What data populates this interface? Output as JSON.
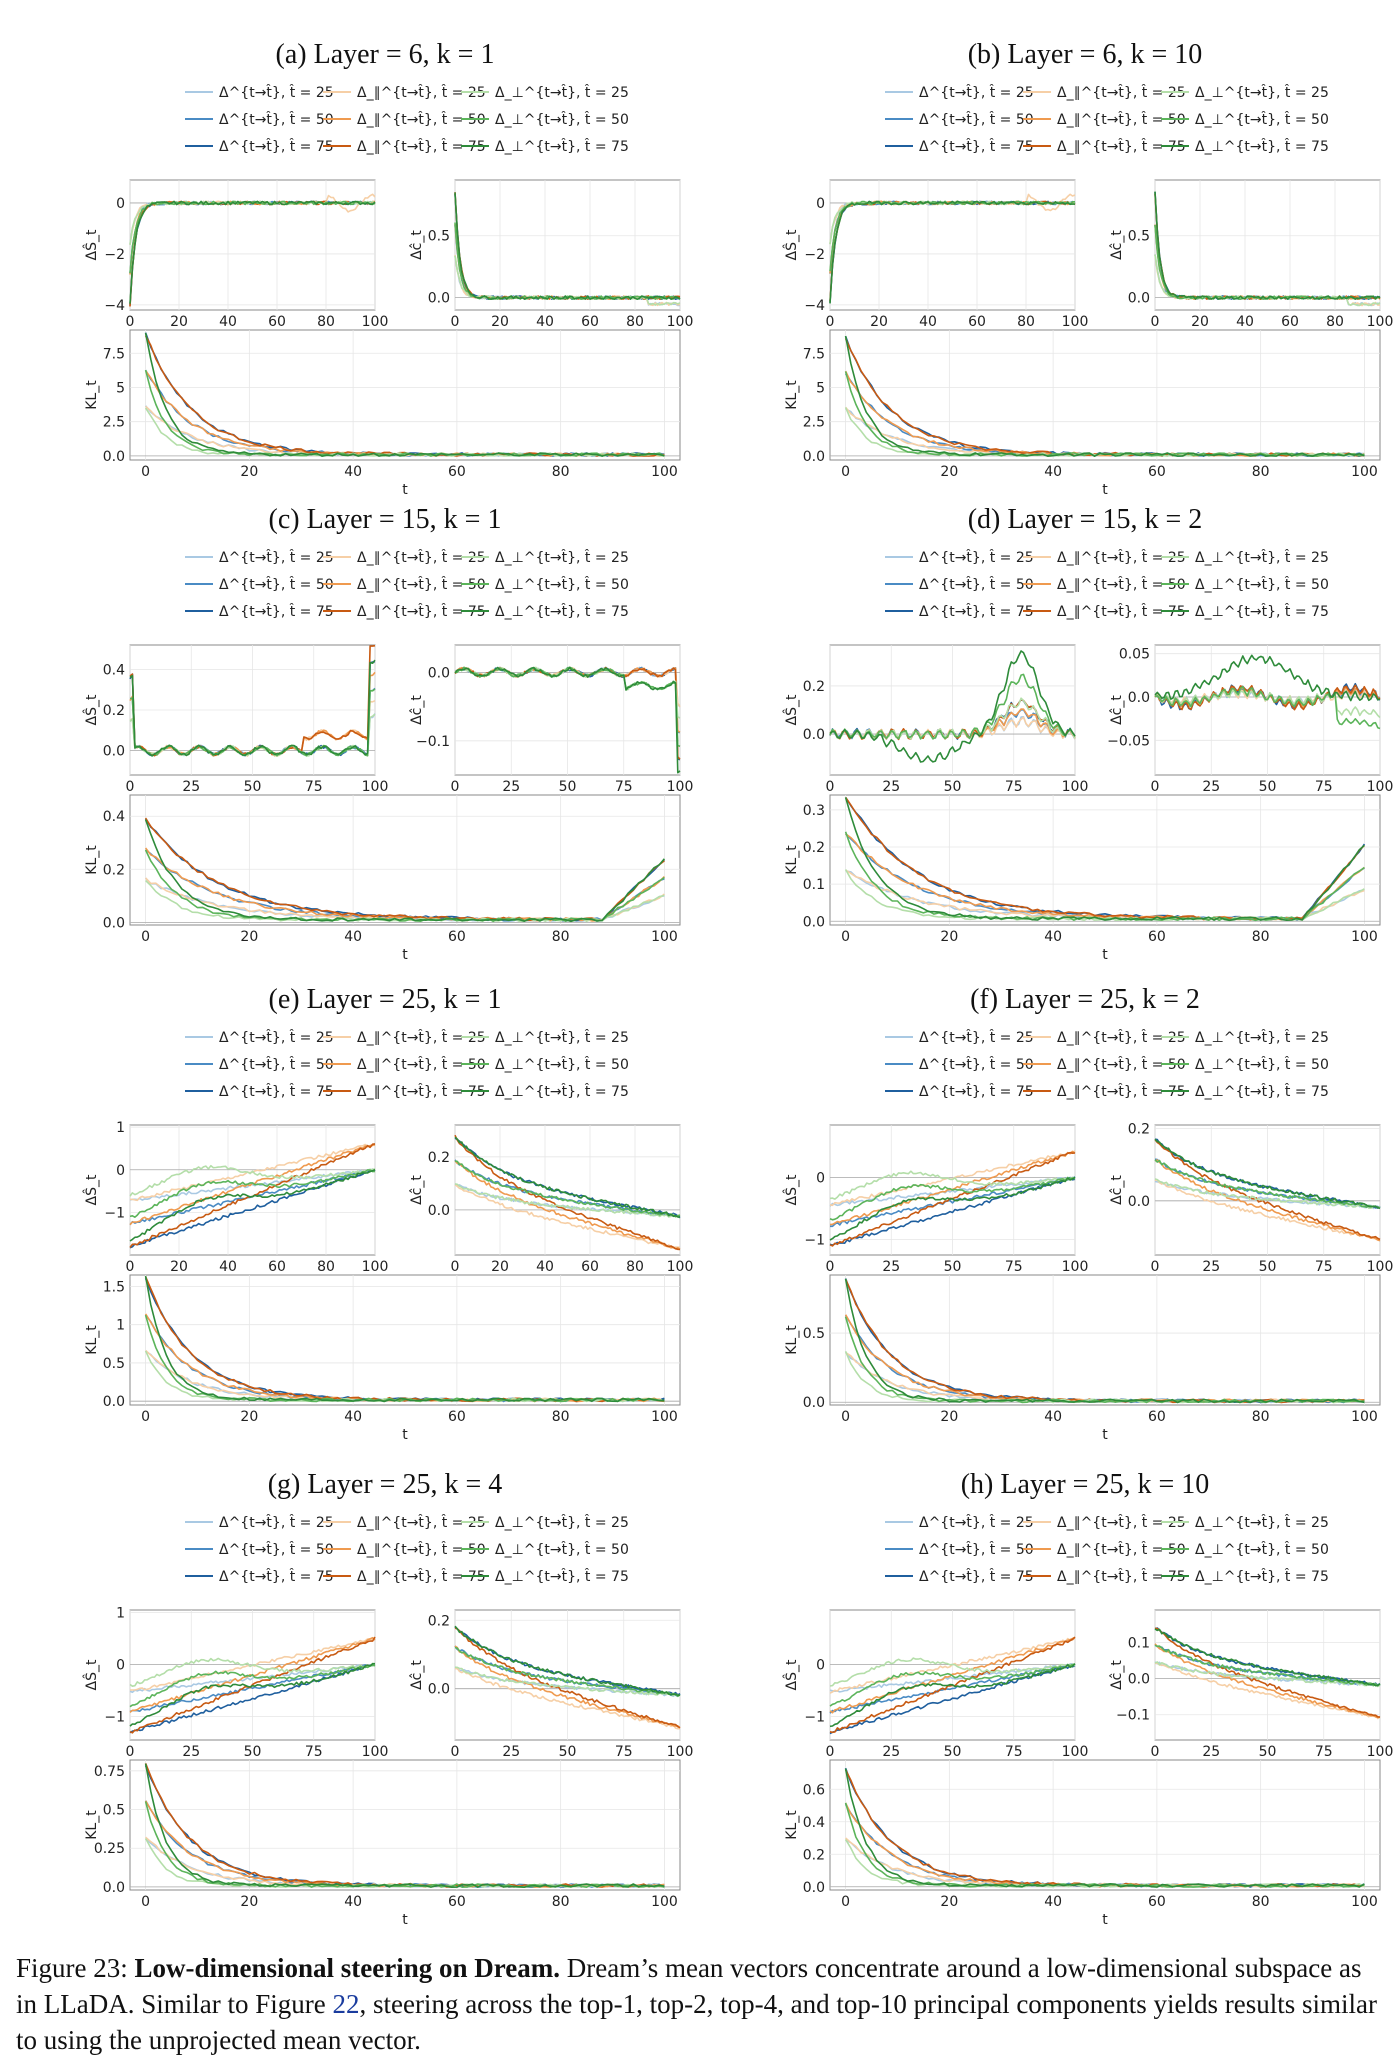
{
  "figure": {
    "panels": [
      {
        "id": "a",
        "title": "(a) Layer = 6, k = 1"
      },
      {
        "id": "b",
        "title": "(b) Layer = 6, k = 10"
      },
      {
        "id": "c",
        "title": "(c) Layer = 15, k = 1"
      },
      {
        "id": "d",
        "title": "(d) Layer = 15, k = 2"
      },
      {
        "id": "e",
        "title": "(e) Layer = 25, k = 1"
      },
      {
        "id": "f",
        "title": "(f) Layer = 25, k = 2"
      },
      {
        "id": "g",
        "title": "(g) Layer = 25, k = 4"
      },
      {
        "id": "h",
        "title": "(h) Layer = 25, k = 10"
      }
    ],
    "legend": [
      {
        "label": "Δ^{t→t̂}, t̂ = 25",
        "color": "#a9c9e3"
      },
      {
        "label": "Δ^{t→t̂}, t̂ = 50",
        "color": "#4a8bc4"
      },
      {
        "label": "Δ^{t→t̂}, t̂ = 75",
        "color": "#1f5f9e"
      },
      {
        "label": "Δ_∥^{t→t̂}, t̂ = 25",
        "color": "#f6cfa6"
      },
      {
        "label": "Δ_∥^{t→t̂}, t̂ = 50",
        "color": "#ef9a4f"
      },
      {
        "label": "Δ_∥^{t→t̂}, t̂ = 75",
        "color": "#c85a12"
      },
      {
        "label": "Δ_⊥^{t→t̂}, t̂ = 25",
        "color": "#b4dea9"
      },
      {
        "label": "Δ_⊥^{t→t̂}, t̂ = 50",
        "color": "#5bb45a"
      },
      {
        "label": "Δ_⊥^{t→t̂}, t̂ = 75",
        "color": "#2e8b3a"
      }
    ],
    "axes": {
      "delta_s_label": "ΔŜ_t",
      "delta_c_label": "Δĉ_t",
      "kl_label": "KL_t",
      "x_label": "t"
    }
  },
  "chart_data": [
    {
      "panel": "a",
      "type": "line",
      "title": "(a) Layer = 6, k = 1",
      "subplots": [
        {
          "name": "delta_s",
          "ylabel": "ΔŜ_t",
          "xlim": [
            0,
            100
          ],
          "ylim": [
            -4.2,
            0.9
          ],
          "xticks": [
            0,
            20,
            40,
            60,
            80,
            100
          ],
          "yticks": [
            -4,
            -2,
            0
          ],
          "shape": "neg-spike",
          "peak": -4.0
        },
        {
          "name": "delta_c",
          "ylabel": "Δĉ_t",
          "xlim": [
            0,
            100
          ],
          "ylim": [
            -0.1,
            0.95
          ],
          "xticks": [
            0,
            20,
            40,
            60,
            80,
            100
          ],
          "yticks": [
            0.0,
            0.5
          ],
          "shape": "pos-spike",
          "peak": 0.85
        },
        {
          "name": "kl",
          "ylabel": "KL_t",
          "xlabel": "t",
          "xlim": [
            -3,
            103
          ],
          "ylim": [
            -0.3,
            9.2
          ],
          "xticks": [
            0,
            20,
            40,
            60,
            80,
            100
          ],
          "yticks": [
            0.0,
            2.5,
            5.0,
            7.5
          ],
          "shape": "decay",
          "peak": 8.8
        }
      ]
    },
    {
      "panel": "b",
      "type": "line",
      "title": "(b) Layer = 6, k = 10",
      "subplots": [
        {
          "name": "delta_s",
          "ylabel": "ΔŜ_t",
          "xlim": [
            0,
            100
          ],
          "ylim": [
            -4.2,
            0.9
          ],
          "xticks": [
            0,
            20,
            40,
            60,
            80,
            100
          ],
          "yticks": [
            -4,
            -2,
            0
          ],
          "shape": "neg-spike",
          "peak": -3.9
        },
        {
          "name": "delta_c",
          "ylabel": "Δĉ_t",
          "xlim": [
            0,
            100
          ],
          "ylim": [
            -0.1,
            0.95
          ],
          "xticks": [
            0,
            20,
            40,
            60,
            80,
            100
          ],
          "yticks": [
            0.0,
            0.5
          ],
          "shape": "pos-spike",
          "peak": 0.85
        },
        {
          "name": "kl",
          "ylabel": "KL_t",
          "xlabel": "t",
          "xlim": [
            -3,
            103
          ],
          "ylim": [
            -0.3,
            9.2
          ],
          "xticks": [
            0,
            20,
            40,
            60,
            80,
            100
          ],
          "yticks": [
            0.0,
            2.5,
            5.0,
            7.5
          ],
          "shape": "decay",
          "peak": 8.6
        }
      ]
    },
    {
      "panel": "c",
      "type": "line",
      "title": "(c) Layer = 15, k = 1",
      "subplots": [
        {
          "name": "delta_s",
          "ylabel": "ΔŜ_t",
          "xlim": [
            0,
            100
          ],
          "ylim": [
            -0.12,
            0.52
          ],
          "xticks": [
            0,
            25,
            50,
            75,
            100
          ],
          "yticks": [
            0.0,
            0.2,
            0.4
          ],
          "shape": "edge-spikes",
          "peak": 0.45
        },
        {
          "name": "delta_c",
          "ylabel": "Δĉ_t",
          "xlim": [
            0,
            100
          ],
          "ylim": [
            -0.15,
            0.04
          ],
          "xticks": [
            0,
            25,
            50,
            75,
            100
          ],
          "yticks": [
            -0.1,
            0.0
          ],
          "shape": "end-drop",
          "peak": -0.13
        },
        {
          "name": "kl",
          "ylabel": "KL_t",
          "xlabel": "t",
          "xlim": [
            -3,
            103
          ],
          "ylim": [
            -0.01,
            0.48
          ],
          "xticks": [
            0,
            20,
            40,
            60,
            80,
            100
          ],
          "yticks": [
            0.0,
            0.2,
            0.4
          ],
          "shape": "decay-rise",
          "peak": 0.38
        }
      ]
    },
    {
      "panel": "d",
      "type": "line",
      "title": "(d) Layer = 15, k = 2",
      "subplots": [
        {
          "name": "delta_s",
          "ylabel": "ΔŜ_t",
          "xlim": [
            0,
            100
          ],
          "ylim": [
            -0.17,
            0.37
          ],
          "xticks": [
            0,
            25,
            50,
            75,
            100
          ],
          "yticks": [
            0.0,
            0.2
          ],
          "shape": "hump",
          "peak": 0.33
        },
        {
          "name": "delta_c",
          "ylabel": "Δĉ_t",
          "xlim": [
            0,
            100
          ],
          "ylim": [
            -0.09,
            0.06
          ],
          "xticks": [
            0,
            25,
            50,
            75,
            100
          ],
          "yticks": [
            -0.05,
            0.0,
            0.05
          ],
          "shape": "green-hump",
          "peak": 0.045
        },
        {
          "name": "kl",
          "ylabel": "KL_t",
          "xlabel": "t",
          "xlim": [
            -3,
            103
          ],
          "ylim": [
            -0.01,
            0.34
          ],
          "xticks": [
            0,
            20,
            40,
            60,
            80,
            100
          ],
          "yticks": [
            0.0,
            0.1,
            0.2,
            0.3
          ],
          "shape": "decay-rise",
          "peak": 0.33
        }
      ]
    },
    {
      "panel": "e",
      "type": "line",
      "title": "(e) Layer = 25, k = 1",
      "subplots": [
        {
          "name": "delta_s",
          "ylabel": "ΔŜ_t",
          "xlim": [
            0,
            100
          ],
          "ylim": [
            -2.0,
            1.05
          ],
          "xticks": [
            0,
            20,
            40,
            60,
            80,
            100
          ],
          "yticks": [
            -1,
            0,
            1
          ],
          "shape": "rising",
          "peak": -1.8
        },
        {
          "name": "delta_c",
          "ylabel": "Δĉ_t",
          "xlim": [
            0,
            100
          ],
          "ylim": [
            -0.17,
            0.32
          ],
          "xticks": [
            0,
            20,
            40,
            60,
            80,
            100
          ],
          "yticks": [
            0.0,
            0.2
          ],
          "shape": "falling",
          "peak": 0.3
        },
        {
          "name": "kl",
          "ylabel": "KL_t",
          "xlabel": "t",
          "xlim": [
            -3,
            103
          ],
          "ylim": [
            -0.05,
            1.65
          ],
          "xticks": [
            0,
            20,
            40,
            60,
            80,
            100
          ],
          "yticks": [
            0.0,
            0.5,
            1.0,
            1.5
          ],
          "shape": "decay",
          "peak": 1.6
        }
      ]
    },
    {
      "panel": "f",
      "type": "line",
      "title": "(f) Layer = 25, k = 2",
      "subplots": [
        {
          "name": "delta_s",
          "ylabel": "ΔŜ_t",
          "xlim": [
            0,
            100
          ],
          "ylim": [
            -1.25,
            0.85
          ],
          "xticks": [
            0,
            25,
            50,
            75,
            100
          ],
          "yticks": [
            -1,
            0
          ],
          "shape": "rising",
          "peak": -1.1
        },
        {
          "name": "delta_c",
          "ylabel": "Δĉ_t",
          "xlim": [
            0,
            100
          ],
          "ylim": [
            -0.15,
            0.21
          ],
          "xticks": [
            0,
            25,
            50,
            75,
            100
          ],
          "yticks": [
            0.0,
            0.2
          ],
          "shape": "falling",
          "peak": 0.19
        },
        {
          "name": "kl",
          "ylabel": "KL_t",
          "xlabel": "t",
          "xlim": [
            -3,
            103
          ],
          "ylim": [
            -0.02,
            0.92
          ],
          "xticks": [
            0,
            20,
            40,
            60,
            80,
            100
          ],
          "yticks": [
            0.0,
            0.5
          ],
          "shape": "decay",
          "peak": 0.88
        }
      ]
    },
    {
      "panel": "g",
      "type": "line",
      "title": "(g) Layer = 25, k = 4",
      "subplots": [
        {
          "name": "delta_s",
          "ylabel": "ΔŜ_t",
          "xlim": [
            0,
            100
          ],
          "ylim": [
            -1.45,
            1.05
          ],
          "xticks": [
            0,
            25,
            50,
            75,
            100
          ],
          "yticks": [
            -1,
            0,
            1
          ],
          "shape": "rising",
          "peak": -1.3
        },
        {
          "name": "delta_c",
          "ylabel": "Δĉ_t",
          "xlim": [
            0,
            100
          ],
          "ylim": [
            -0.15,
            0.23
          ],
          "xticks": [
            0,
            25,
            50,
            75,
            100
          ],
          "yticks": [
            0.0,
            0.2
          ],
          "shape": "falling",
          "peak": 0.2
        },
        {
          "name": "kl",
          "ylabel": "KL_t",
          "xlabel": "t",
          "xlim": [
            -3,
            103
          ],
          "ylim": [
            -0.02,
            0.82
          ],
          "xticks": [
            0,
            20,
            40,
            60,
            80,
            100
          ],
          "yticks": [
            0.0,
            0.25,
            0.5,
            0.75
          ],
          "shape": "decay",
          "peak": 0.78
        }
      ]
    },
    {
      "panel": "h",
      "type": "line",
      "title": "(h) Layer = 25, k = 10",
      "subplots": [
        {
          "name": "delta_s",
          "ylabel": "ΔŜ_t",
          "xlim": [
            0,
            100
          ],
          "ylim": [
            -1.45,
            1.05
          ],
          "xticks": [
            0,
            25,
            50,
            75,
            100
          ],
          "yticks": [
            -1,
            0
          ],
          "shape": "rising",
          "peak": -1.3
        },
        {
          "name": "delta_c",
          "ylabel": "Δĉ_t",
          "xlim": [
            0,
            100
          ],
          "ylim": [
            -0.17,
            0.19
          ],
          "xticks": [
            0,
            25,
            50,
            75,
            100
          ],
          "yticks": [
            -0.1,
            0.0,
            0.1
          ],
          "shape": "falling",
          "peak": 0.16
        },
        {
          "name": "kl",
          "ylabel": "KL_t",
          "xlabel": "t",
          "xlim": [
            -3,
            103
          ],
          "ylim": [
            -0.02,
            0.78
          ],
          "xticks": [
            0,
            20,
            40,
            60,
            80,
            100
          ],
          "yticks": [
            0.0,
            0.2,
            0.4,
            0.6
          ],
          "shape": "decay",
          "peak": 0.72
        }
      ]
    }
  ],
  "caption": {
    "label": "Figure 23:",
    "bold": "Low-dimensional steering on Dream.",
    "text_1": "Dream’s mean vectors concentrate around a low-dimensional subspace as in LLaDA. Similar to Figure",
    "ref": "22",
    "text_2": ", steering across the top-1, top-2, top-4, and top-10 principal components yields results similar to using the unprojected mean vector."
  }
}
